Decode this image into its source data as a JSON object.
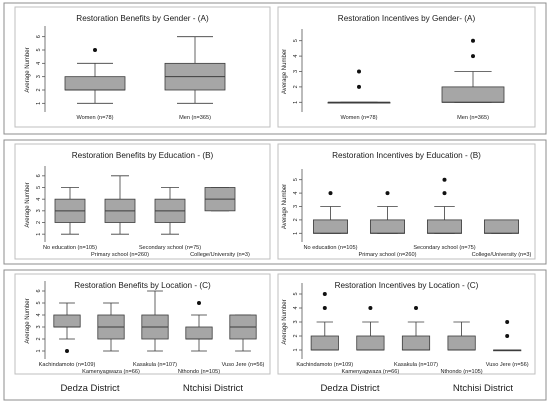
{
  "chart_data": [
    {
      "type": "box",
      "title": "Restoration Benefits by Gender - (A)",
      "ylabel": "Average Number",
      "ylim": [
        0.5,
        6.5
      ],
      "yticks": [
        1,
        2,
        3,
        4,
        5,
        6
      ],
      "categories": [
        "Women (n=78)",
        "Men (n=365)"
      ],
      "boxes": [
        {
          "min": 1,
          "q1": 2,
          "median": 2,
          "q3": 3,
          "max": 4,
          "outliers": [
            5
          ]
        },
        {
          "min": 1,
          "q1": 2,
          "median": 3,
          "q3": 4,
          "max": 6,
          "outliers": []
        }
      ]
    },
    {
      "type": "box",
      "title": "Restoration Incentives by Gender- (A)",
      "ylabel": "Average Number",
      "ylim": [
        0.5,
        5.5
      ],
      "yticks": [
        1,
        2,
        3,
        4,
        5
      ],
      "categories": [
        "Women (n=78)",
        "Men (n=365)"
      ],
      "boxes": [
        {
          "min": 1,
          "q1": 1,
          "median": 1,
          "q3": 1,
          "max": 1,
          "outliers": [
            2,
            3
          ]
        },
        {
          "min": 1,
          "q1": 1,
          "median": 1,
          "q3": 2,
          "max": 3,
          "outliers": [
            4,
            5
          ]
        }
      ]
    },
    {
      "type": "box",
      "title": "Restoration Benefits by Education - (B)",
      "ylabel": "Average Number",
      "ylim": [
        0.5,
        6.5
      ],
      "yticks": [
        1,
        2,
        3,
        4,
        5,
        6
      ],
      "categories": [
        "No education (n=105)",
        "Primary school (n=260)",
        "Secondary school (n=75)",
        "College/University (n=3)"
      ],
      "boxes": [
        {
          "min": 1,
          "q1": 2,
          "median": 3,
          "q3": 4,
          "max": 5,
          "outliers": []
        },
        {
          "min": 1,
          "q1": 2,
          "median": 3,
          "q3": 4,
          "max": 6,
          "outliers": []
        },
        {
          "min": 1,
          "q1": 2,
          "median": 3,
          "q3": 4,
          "max": 5,
          "outliers": []
        },
        {
          "min": 3,
          "q1": 3,
          "median": 4,
          "q3": 5,
          "max": 5,
          "outliers": []
        }
      ]
    },
    {
      "type": "box",
      "title": "Restoration Incentives by Education - (B)",
      "ylabel": "Average Number",
      "ylim": [
        0.5,
        5.5
      ],
      "yticks": [
        1,
        2,
        3,
        4,
        5
      ],
      "categories": [
        "No education (n=105)",
        "Primary school (n=260)",
        "Secondary school (n=75)",
        "College/University (n=3)"
      ],
      "boxes": [
        {
          "min": 1,
          "q1": 1,
          "median": 1,
          "q3": 2,
          "max": 3,
          "outliers": [
            4
          ]
        },
        {
          "min": 1,
          "q1": 1,
          "median": 1,
          "q3": 2,
          "max": 3,
          "outliers": [
            4
          ]
        },
        {
          "min": 1,
          "q1": 1,
          "median": 1,
          "q3": 2,
          "max": 3,
          "outliers": [
            4,
            5
          ]
        },
        {
          "min": 1,
          "q1": 1,
          "median": 1,
          "q3": 2,
          "max": 2,
          "outliers": []
        }
      ]
    },
    {
      "type": "box",
      "title": "Restoration Benefits by Location - (C)",
      "ylabel": "Average Number",
      "ylim": [
        0.5,
        6.5
      ],
      "yticks": [
        1,
        2,
        3,
        4,
        5,
        6
      ],
      "categories": [
        "Kachindamoto (n=109)",
        "Kamenyagwaza (n=66)",
        "Kasakula (n=107)",
        "Nthondo (n=105)",
        "Vuso Jere (n=56)"
      ],
      "boxes": [
        {
          "min": 2,
          "q1": 3,
          "median": 3,
          "q3": 4,
          "max": 5,
          "outliers": [
            1
          ]
        },
        {
          "min": 1,
          "q1": 2,
          "median": 3,
          "q3": 4,
          "max": 5,
          "outliers": []
        },
        {
          "min": 1,
          "q1": 2,
          "median": 3,
          "q3": 4,
          "max": 6,
          "outliers": []
        },
        {
          "min": 1,
          "q1": 2,
          "median": 2,
          "q3": 3,
          "max": 4,
          "outliers": [
            5
          ]
        },
        {
          "min": 1,
          "q1": 2,
          "median": 3,
          "q3": 4,
          "max": 4,
          "outliers": []
        }
      ],
      "groups": [
        "Dedza District",
        "Ntchisi District"
      ]
    },
    {
      "type": "box",
      "title": "Restoration Incentives by Location - (C)",
      "ylabel": "Average Number",
      "ylim": [
        0.5,
        5.5
      ],
      "yticks": [
        1,
        2,
        3,
        4,
        5
      ],
      "categories": [
        "Kachindamoto (n=109)",
        "Kamenyagwaza (n=66)",
        "Kasakula (n=107)",
        "Nthondo (n=105)",
        "Vuso Jere (n=56)"
      ],
      "boxes": [
        {
          "min": 1,
          "q1": 1,
          "median": 1,
          "q3": 2,
          "max": 3,
          "outliers": [
            4,
            5
          ]
        },
        {
          "min": 1,
          "q1": 1,
          "median": 1,
          "q3": 2,
          "max": 3,
          "outliers": [
            4
          ]
        },
        {
          "min": 1,
          "q1": 1,
          "median": 1,
          "q3": 2,
          "max": 3,
          "outliers": [
            4
          ]
        },
        {
          "min": 1,
          "q1": 1,
          "median": 1,
          "q3": 2,
          "max": 3,
          "outliers": []
        },
        {
          "min": 1,
          "q1": 1,
          "median": 1,
          "q3": 1,
          "max": 1,
          "outliers": [
            2,
            3
          ]
        }
      ],
      "groups": [
        "Dedza District",
        "Ntchisi District"
      ]
    }
  ],
  "colors": {
    "box_fill": "#a6a6a6",
    "box_stroke": "#3c3c3c",
    "panel_border": "#bfbfbf",
    "frame_border": "#8c8c8c",
    "text": "#1a1a1a",
    "outlier": "#111111"
  }
}
